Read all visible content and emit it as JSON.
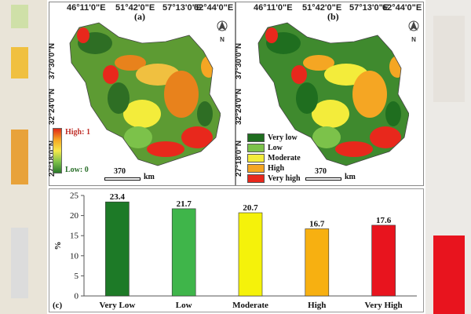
{
  "maps": {
    "panel_a": {
      "label": "(a)",
      "top_coords": [
        "46°11'0\"E",
        "51°42'0\"E",
        "57°13'0\"E",
        "62°44'0\"E"
      ],
      "left_coords": [
        "37°30'0\"N",
        "32°24'0\"N",
        "27°18'0\"N"
      ],
      "legend_high": "High: 1",
      "legend_low": "Low: 0",
      "scale_value": "370",
      "scale_unit": "km"
    },
    "panel_b": {
      "label": "(b)",
      "top_coords": [
        "46°11'0\"E",
        "51°42'0\"E",
        "57°13'0\"E",
        "62°44'0\"E"
      ],
      "left_coords": [
        "37°30'0\"N",
        "32°24'0\"N",
        "27°18'0\"N"
      ],
      "classes": [
        {
          "label": "Very low",
          "color": "#1f6e1f"
        },
        {
          "label": "Low",
          "color": "#7cc24a"
        },
        {
          "label": "Moderate",
          "color": "#f3ec3b"
        },
        {
          "label": "High",
          "color": "#f5a623"
        },
        {
          "label": "Very high",
          "color": "#e8281c"
        }
      ],
      "scale_value": "370",
      "scale_unit": "km"
    },
    "compass_text": "N"
  },
  "chart_data": {
    "type": "bar",
    "panel_label": "(c)",
    "categories": [
      "Very Low",
      "Low",
      "Moderate",
      "High",
      "Very High"
    ],
    "values": [
      23.4,
      21.7,
      20.7,
      16.7,
      17.6
    ],
    "value_labels": [
      "23.4",
      "21.7",
      "20.7",
      "16.7",
      "17.6"
    ],
    "colors": [
      "#1d7a27",
      "#3fb54a",
      "#f5f20a",
      "#f7b011",
      "#e8141e"
    ],
    "ylabel": "%",
    "xlabel": "",
    "title": "",
    "ylim": [
      0,
      25
    ],
    "yticks": [
      0,
      5,
      10,
      15,
      20,
      25
    ],
    "grid": false
  }
}
